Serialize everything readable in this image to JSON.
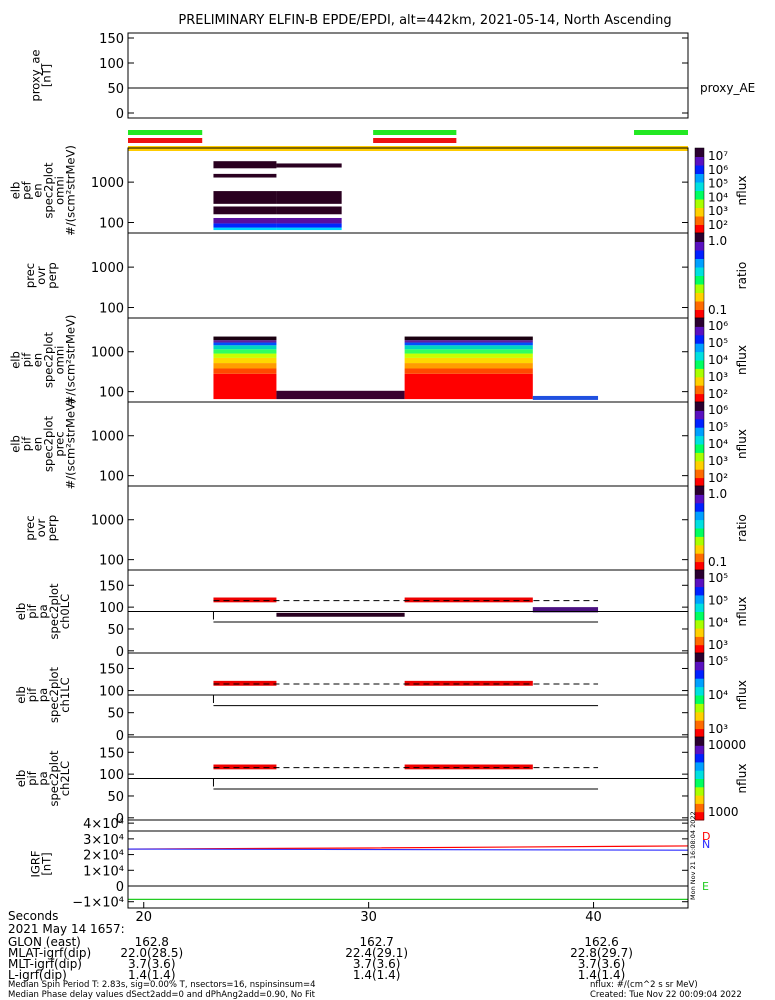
{
  "title": "PRELIMINARY ELFIN-B EPDE/EPDI, alt=442km, 2021-05-14, North Ascending",
  "chart_data": {
    "type": "heatmap",
    "xlim": [
      19.3,
      44.2
    ],
    "x_ticks": [
      "20",
      "30",
      "40"
    ],
    "panels": [
      {
        "name": "proxy_ae",
        "ylabel": [
          "proxy_ae",
          "[nT]"
        ],
        "yticks": [
          "150",
          "100",
          "50",
          "0"
        ],
        "ylim": [
          -10,
          160
        ],
        "line_value": 50,
        "legend": "proxy_AE"
      },
      {
        "name": "elb_pef_en_spec2plot_omni",
        "ylabel": [
          "elb",
          "pef",
          "en",
          "spec2plot",
          "omni",
          "#/(scm²strMeV)"
        ],
        "yticks": [
          "1000",
          "100"
        ],
        "ylim": [
          55,
          7000
        ],
        "colorbar": {
          "label": "nflux",
          "ticks": [
            "10⁷",
            "10⁶",
            "10⁵",
            "10⁴",
            "10³",
            "10²"
          ],
          "range": [
            50,
            10000000
          ]
        }
      },
      {
        "name": "prec_ovr_perp_e",
        "ylabel": [
          "prec",
          "ovr",
          "perp"
        ],
        "yticks": [
          "1000",
          "100"
        ],
        "colorbar": {
          "label": "ratio",
          "ticks": [
            "1.0",
            "0.1"
          ]
        }
      },
      {
        "name": "elb_pif_en_spec2plot_omni",
        "ylabel": [
          "elb",
          "pif",
          "en",
          "spec2plot",
          "omni",
          "#/(scm²strMeV)"
        ],
        "yticks": [
          "1000",
          "100"
        ],
        "colorbar": {
          "label": "nflux",
          "ticks": [
            "10⁶",
            "10⁵",
            "10⁴",
            "10³",
            "10²"
          ]
        }
      },
      {
        "name": "elb_pif_en_spec2plot_prec",
        "ylabel": [
          "elb",
          "pif",
          "en",
          "spec2plot",
          "prec",
          "#/(scm²strMeV)"
        ],
        "yticks": [
          "1000",
          "100"
        ],
        "colorbar": {
          "label": "nflux",
          "ticks": [
            "10⁶",
            "10⁵",
            "10⁴",
            "10³",
            "10²"
          ]
        }
      },
      {
        "name": "prec_ovr_perp_i",
        "ylabel": [
          "prec",
          "ovr",
          "perp"
        ],
        "yticks": [
          "1000",
          "100"
        ],
        "colorbar": {
          "label": "ratio",
          "ticks": [
            "1.0",
            "0.1"
          ]
        }
      },
      {
        "name": "elb_pif_pa_spec2plot_ch0LC",
        "ylabel": [
          "elb",
          "pif",
          "pa",
          "spec2plot",
          "ch0LC"
        ],
        "yticks": [
          "150",
          "100",
          "50",
          "0"
        ],
        "colorbar": {
          "label": "nflux",
          "ticks": [
            "10⁵",
            "10⁵",
            "10⁴",
            "10³"
          ]
        }
      },
      {
        "name": "elb_pif_pa_spec2plot_ch1LC",
        "ylabel": [
          "elb",
          "pif",
          "pa",
          "spec2plot",
          "ch1LC"
        ],
        "yticks": [
          "150",
          "100",
          "50",
          "0"
        ],
        "colorbar": {
          "label": "nflux",
          "ticks": [
            "10⁵",
            "10⁴",
            "10³"
          ]
        }
      },
      {
        "name": "elb_pif_pa_spec2plot_ch2LC",
        "ylabel": [
          "elb",
          "pif",
          "pa",
          "spec2plot",
          "ch2LC"
        ],
        "yticks": [
          "150",
          "100",
          "50",
          "0"
        ],
        "colorbar": {
          "label": "nflux",
          "ticks": [
            "10000",
            "1000"
          ]
        }
      },
      {
        "name": "IGRF",
        "ylabel": [
          "IGRF",
          "[nT]"
        ],
        "yticks": [
          "4×10⁴",
          "3×10⁴",
          "2×10⁴",
          "1×10⁴",
          "0",
          "−1×10⁴"
        ],
        "legend": [
          "D",
          "N",
          "E"
        ],
        "series": [
          {
            "name": "D",
            "color": "#ff0000",
            "x": [
              19.3,
              30,
              44.2
            ],
            "y": [
              23500,
              24200,
              25500
            ]
          },
          {
            "name": "N",
            "color": "#2a2aff",
            "x": [
              19.3,
              44.2
            ],
            "y": [
              23500,
              22800
            ]
          },
          {
            "name": "E",
            "color": "#22cc22",
            "x": [
              19.3,
              44.2
            ],
            "y": [
              -8500,
              -8500
            ]
          }
        ]
      }
    ],
    "spectrogram_blocks": [
      {
        "panel": 1,
        "x": [
          23.1,
          25.9
        ],
        "bands": [
          [
            65,
            75,
            "#00d8ff"
          ],
          [
            75,
            95,
            "#0028ff"
          ],
          [
            95,
            130,
            "#5a10a0"
          ],
          [
            130,
            160,
            "#fff"
          ],
          [
            160,
            250,
            "#2a0020"
          ],
          [
            250,
            290,
            "#fff"
          ],
          [
            290,
            600,
            "#2a0020"
          ],
          [
            1300,
            1600,
            "#2a0020"
          ],
          [
            2200,
            3300,
            "#2a0020"
          ]
        ]
      },
      {
        "panel": 1,
        "x": [
          25.9,
          28.8
        ],
        "bands": [
          [
            65,
            75,
            "#00d8ff"
          ],
          [
            75,
            95,
            "#0028ff"
          ],
          [
            95,
            130,
            "#5a10a0"
          ],
          [
            130,
            160,
            "#fff"
          ],
          [
            160,
            250,
            "#2a0020"
          ],
          [
            250,
            290,
            "#fff"
          ],
          [
            290,
            600,
            "#2a0020"
          ],
          [
            2300,
            2900,
            "#2a0020"
          ]
        ]
      },
      {
        "panel": 3,
        "x": [
          23.1,
          25.9
        ],
        "bands": [
          [
            65,
            280,
            "#ff0000"
          ],
          [
            280,
            380,
            "#ff4a00"
          ],
          [
            380,
            520,
            "#ff9d00"
          ],
          [
            520,
            700,
            "#ffd800"
          ],
          [
            700,
            900,
            "#c8ff00"
          ],
          [
            900,
            1150,
            "#30ff60"
          ],
          [
            1150,
            1450,
            "#00d8c0"
          ],
          [
            1450,
            1700,
            "#0050ff"
          ],
          [
            1700,
            1950,
            "#6020a0"
          ],
          [
            1950,
            2400,
            "#1a0010"
          ]
        ]
      },
      {
        "panel": 3,
        "x": [
          25.9,
          31.6
        ],
        "bands": [
          [
            65,
            105,
            "#3a0030"
          ]
        ]
      },
      {
        "panel": 3,
        "x": [
          31.6,
          37.3
        ],
        "bands": [
          [
            65,
            280,
            "#ff0000"
          ],
          [
            280,
            380,
            "#ff4a00"
          ],
          [
            380,
            520,
            "#ff9d00"
          ],
          [
            520,
            700,
            "#ffd800"
          ],
          [
            700,
            900,
            "#c8ff00"
          ],
          [
            900,
            1150,
            "#30ff60"
          ],
          [
            1150,
            1450,
            "#00d8c0"
          ],
          [
            1450,
            1700,
            "#0050ff"
          ],
          [
            1700,
            1950,
            "#6020a0"
          ],
          [
            1950,
            2400,
            "#1a0010"
          ]
        ]
      },
      {
        "panel": 3,
        "x": [
          37.3,
          40.2
        ],
        "bands": [
          [
            62,
            78,
            "#2050e0"
          ]
        ]
      }
    ],
    "pa_blocks": [
      {
        "panel": 6,
        "x": [
          23.1,
          25.9
        ],
        "y": [
          111,
          122
        ],
        "color": "#ee0000"
      },
      {
        "panel": 6,
        "x": [
          25.9,
          31.6
        ],
        "y": [
          78,
          87
        ],
        "color": "#280020"
      },
      {
        "panel": 6,
        "x": [
          31.6,
          37.3
        ],
        "y": [
          111,
          122
        ],
        "color": "#ee0000"
      },
      {
        "panel": 6,
        "x": [
          37.3,
          40.2
        ],
        "y": [
          88,
          100
        ],
        "color": "#4a1080"
      },
      {
        "panel": 7,
        "x": [
          23.1,
          25.9
        ],
        "y": [
          111,
          122
        ],
        "color": "#ee0000"
      },
      {
        "panel": 7,
        "x": [
          31.6,
          37.3
        ],
        "y": [
          111,
          122
        ],
        "color": "#ee0000"
      },
      {
        "panel": 8,
        "x": [
          23.1,
          25.9
        ],
        "y": [
          111,
          122
        ],
        "color": "#ee0000"
      },
      {
        "panel": 8,
        "x": [
          31.6,
          37.3
        ],
        "y": [
          111,
          122
        ],
        "color": "#ee0000"
      }
    ],
    "pa_lines": {
      "lc_dashed": 115,
      "solid_upper": 90,
      "solid_lower": 66,
      "x_range": [
        23.1,
        40.2
      ]
    },
    "bars": [
      {
        "color": "#22e822",
        "segments": [
          [
            19.3,
            22.6
          ],
          [
            30.2,
            33.9
          ],
          [
            41.8,
            44.2
          ]
        ]
      },
      {
        "color": "#ee1111",
        "segments": [
          [
            19.3,
            22.6
          ],
          [
            30.2,
            33.9
          ]
        ]
      },
      {
        "color": "#ffcc00",
        "segments": [
          [
            19.3,
            44.2
          ]
        ]
      }
    ]
  },
  "footer": {
    "seconds_label": "Seconds",
    "date_label": "2021 May 14 1657:",
    "rows": [
      {
        "label": "GLON (east)",
        "values": [
          "162.8",
          "162.7",
          "162.6"
        ]
      },
      {
        "label": "MLAT-igrf(dip)",
        "values": [
          "22.0(28.5)",
          "22.4(29.1)",
          "22.8(29.7)"
        ]
      },
      {
        "label": "MLT-igrf(dip)",
        "values": [
          "3.7(3.6)",
          "3.7(3.6)",
          "3.7(3.6)"
        ]
      },
      {
        "label": "L-igrf(dip)",
        "values": [
          "1.4(1.4)",
          "1.4(1.4)",
          "1.4(1.4)"
        ]
      }
    ],
    "note1": "Median Spin Period T: 2.83s, sig=0.00% T, nsectors=16, nspinsinsum=4",
    "note2": "Median Phase delay values dSect2add=0 and dPhAng2add=0.90, No Fit",
    "units_note": "nflux: #/(cm^2 s sr MeV)",
    "created": "Created: Tue Nov 22 00:09:04 2022",
    "side_stamp": "Mon Nov 21 16:08:04 2022"
  }
}
